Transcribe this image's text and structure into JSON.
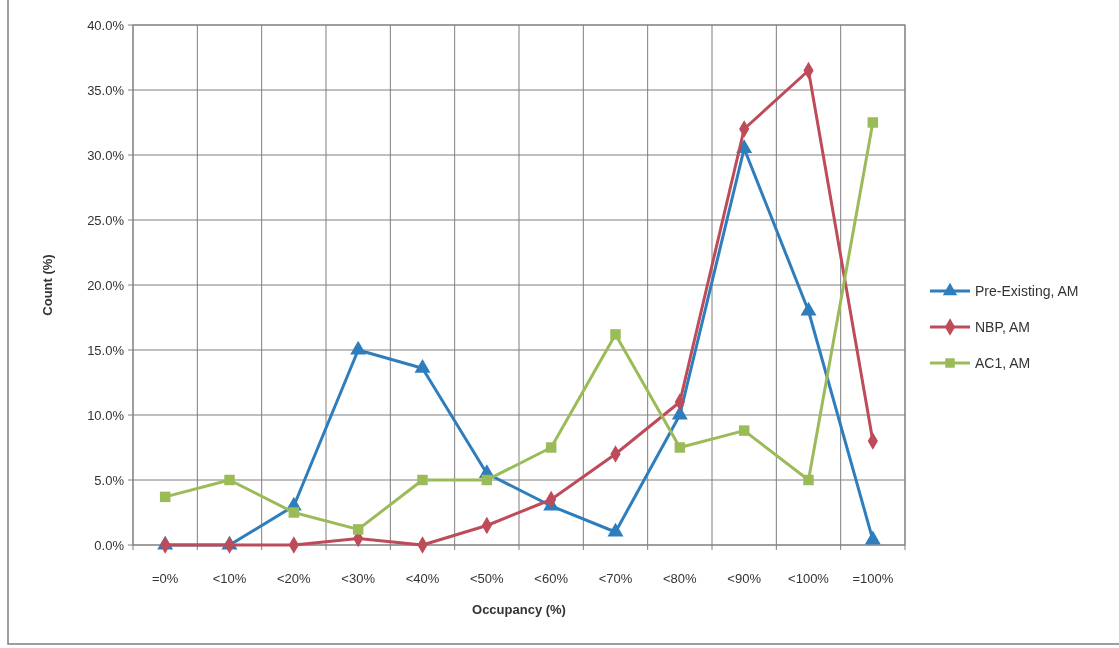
{
  "chart_data": {
    "type": "line",
    "xlabel": "Occupancy (%)",
    "ylabel": "Count (%)",
    "categories": [
      "=0%",
      "<10%",
      "<20%",
      "<30%",
      "<40%",
      "<50%",
      "<60%",
      "<70%",
      "<80%",
      "<90%",
      "<100%",
      "=100%"
    ],
    "series": [
      {
        "name": "Pre-Existing, AM",
        "color": "#2e7dbd",
        "marker": "triangle",
        "values": [
          0,
          0,
          3.0,
          15.0,
          13.6,
          5.5,
          3.0,
          1.0,
          10.0,
          30.5,
          18.0,
          0.4
        ]
      },
      {
        "name": "NBP, AM",
        "color": "#be4b5a",
        "marker": "diamond",
        "values": [
          0,
          0,
          0,
          0.5,
          0,
          1.5,
          3.5,
          7.0,
          11.0,
          32.0,
          36.5,
          8.0
        ]
      },
      {
        "name": "AC1, AM",
        "color": "#9bbb59",
        "marker": "square",
        "values": [
          3.7,
          5.0,
          2.5,
          1.2,
          5.0,
          5.0,
          7.5,
          16.2,
          7.5,
          8.8,
          5.0,
          32.5
        ]
      }
    ],
    "ylim": [
      0,
      40
    ],
    "yticks": [
      {
        "value": 0,
        "label": "0.0%"
      },
      {
        "value": 5,
        "label": "5.0%"
      },
      {
        "value": 10,
        "label": "10.0%"
      },
      {
        "value": 15,
        "label": "15.0%"
      },
      {
        "value": 20,
        "label": "20.0%"
      },
      {
        "value": 25,
        "label": "25.0%"
      },
      {
        "value": 30,
        "label": "30.0%"
      },
      {
        "value": 35,
        "label": "35.0%"
      },
      {
        "value": 40,
        "label": "40.0%"
      }
    ],
    "grid": true,
    "legend": "right"
  }
}
